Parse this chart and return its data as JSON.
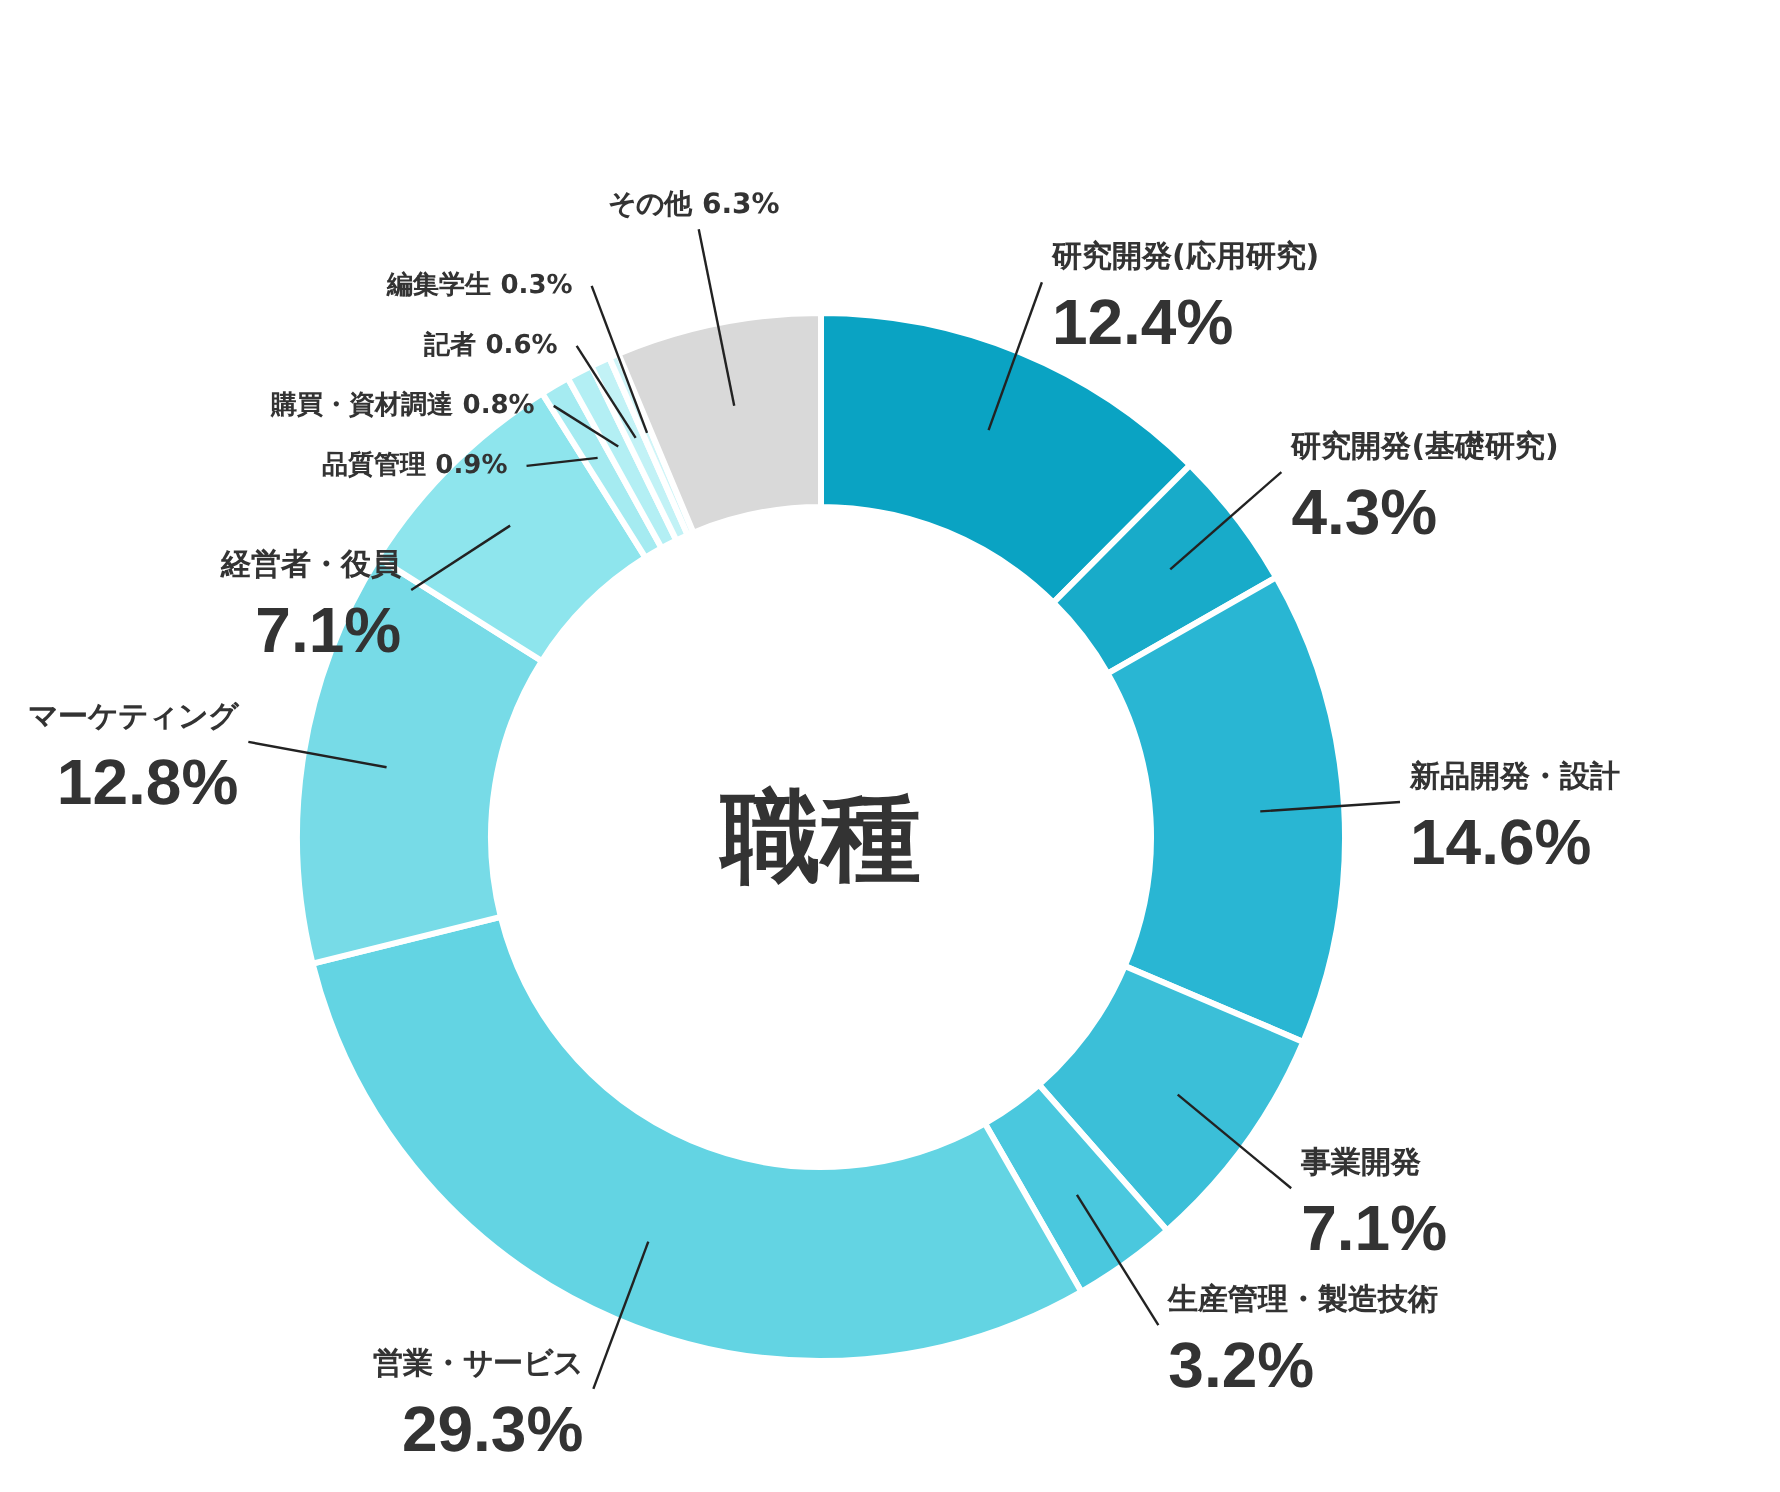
{
  "chart_data": {
    "type": "donut",
    "title": "職種",
    "categories": [
      "研究開発(応用研究)",
      "研究開発(基礎研究)",
      "新品開発・設計",
      "事業開発",
      "生産管理・製造技術",
      "営業・サービス",
      "マーケティング",
      "経営者・役員",
      "品質管理",
      "購買・資材調達",
      "記者",
      "編集学生",
      "その他"
    ],
    "values": [
      12.4,
      4.3,
      14.6,
      7.1,
      3.2,
      29.3,
      12.8,
      7.1,
      0.9,
      0.8,
      0.6,
      0.3,
      6.3
    ],
    "value_labels": [
      "12.4%",
      "4.3%",
      "14.6%",
      "7.1%",
      "3.2%",
      "29.3%",
      "12.8%",
      "7.1%",
      "0.9%",
      "0.8%",
      "0.6%",
      "0.3%",
      "6.3%"
    ],
    "colors": [
      "#0aa3c3",
      "#18abc9",
      "#29b6d3",
      "#3bbfd8",
      "#4ac8de",
      "#63d4e3",
      "#77dbe7",
      "#8ee5ed",
      "#a5ebf1",
      "#b3eff4",
      "#c2f2f6",
      "#d0f5f8",
      "#d9d9d9"
    ]
  }
}
